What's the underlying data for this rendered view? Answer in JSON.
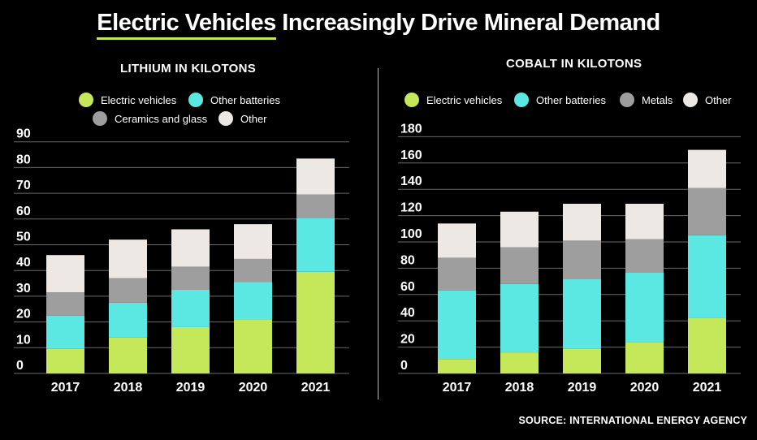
{
  "title_highlight": "Electric Vehicles",
  "title_rest": " Increasingly Drive Mineral Demand",
  "source": "SOURCE: INTERNATIONAL ENERGY AGENCY",
  "colors": {
    "Electric vehicles": "#c4e85a",
    "Other batteries": "#5ce8e2",
    "Ceramics and glass": "#9e9e9e",
    "Metals": "#9e9e9e",
    "Other": "#ede8e3",
    "gridline": "#6b6b6b"
  },
  "chart_data": [
    {
      "type": "bar",
      "stacked": true,
      "title": "LITHIUM IN KILOTONS",
      "categories": [
        "2017",
        "2018",
        "2019",
        "2020",
        "2021"
      ],
      "series": [
        {
          "name": "Electric vehicles",
          "values": [
            9.5,
            14,
            18,
            21,
            39.5
          ]
        },
        {
          "name": "Other batteries",
          "values": [
            13,
            13.5,
            14.5,
            14.5,
            21
          ]
        },
        {
          "name": "Ceramics and glass",
          "values": [
            9,
            9.5,
            9,
            9,
            9
          ]
        },
        {
          "name": "Other",
          "values": [
            14.5,
            15,
            14.5,
            13.5,
            14
          ]
        }
      ],
      "legend_rows": [
        [
          "Electric vehicles",
          "Other batteries"
        ],
        [
          "Ceramics and glass",
          "Other"
        ]
      ],
      "yticks": [
        0,
        10,
        20,
        30,
        40,
        50,
        60,
        70,
        80,
        90
      ],
      "ylim": [
        0,
        90
      ],
      "grid": true
    },
    {
      "type": "bar",
      "stacked": true,
      "title": "COBALT IN KILOTONS",
      "categories": [
        "2017",
        "2018",
        "2019",
        "2020",
        "2021"
      ],
      "series": [
        {
          "name": "Electric vehicles",
          "values": [
            11,
            16,
            19,
            24,
            42
          ]
        },
        {
          "name": "Other batteries",
          "values": [
            52,
            52,
            53,
            53,
            63
          ]
        },
        {
          "name": "Metals",
          "values": [
            25,
            28,
            29,
            25,
            36
          ]
        },
        {
          "name": "Other",
          "values": [
            26,
            27,
            28,
            27,
            29
          ]
        }
      ],
      "legend_rows": [
        [
          "Electric vehicles",
          "Other batteries",
          "Metals",
          "Other"
        ]
      ],
      "yticks": [
        0,
        20,
        40,
        60,
        80,
        100,
        120,
        140,
        160,
        180
      ],
      "ylim": [
        0,
        180
      ],
      "grid": true
    }
  ]
}
